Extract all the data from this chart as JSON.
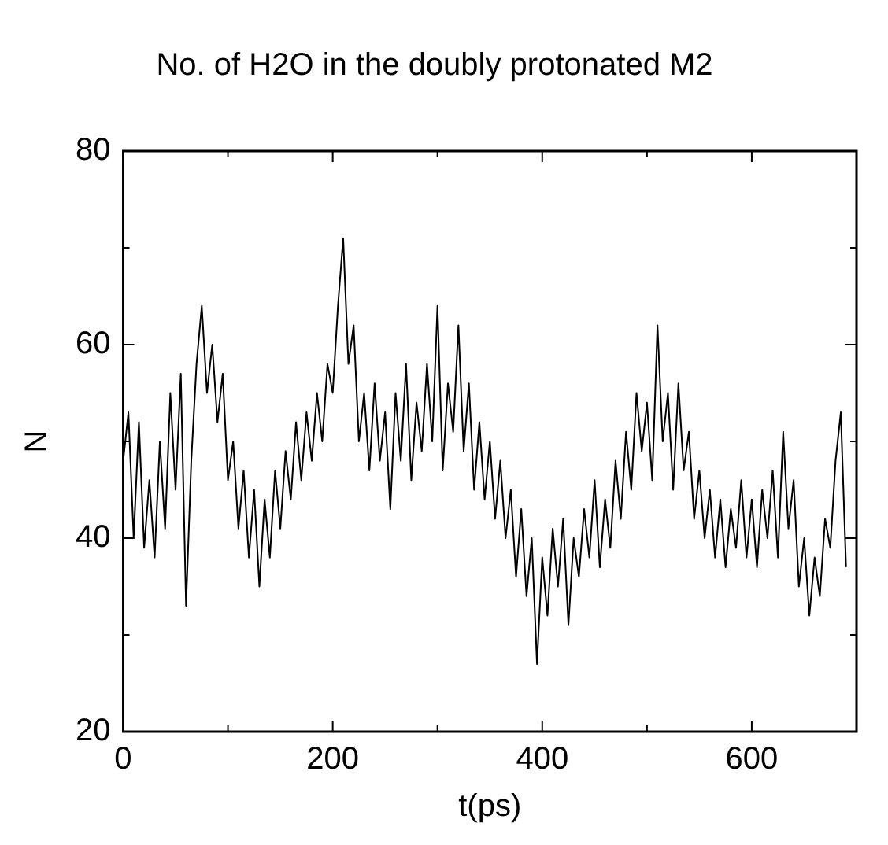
{
  "chart_data": {
    "type": "line",
    "title": "No. of H2O in the doubly protonated M2",
    "xlabel": "t(ps)",
    "ylabel": "N",
    "xlim": [
      0,
      700
    ],
    "ylim": [
      20,
      80
    ],
    "xticks": [
      0,
      {
        "value": 100,
        "label": null
      },
      200,
      {
        "value": 300,
        "label": null
      },
      400,
      {
        "value": 500,
        "label": null
      },
      600,
      {
        "value": 700,
        "label": null
      }
    ],
    "yticks": [
      20,
      {
        "value": 30,
        "label": null
      },
      40,
      {
        "value": 50,
        "label": null
      },
      60,
      {
        "value": 70,
        "label": null
      },
      80
    ],
    "grid": false,
    "legend": false,
    "marker": "none",
    "line_style": "solid",
    "series": [
      {
        "color": "#000000",
        "x": [
          0,
          5,
          10,
          15,
          20,
          25,
          30,
          35,
          40,
          45,
          50,
          55,
          60,
          65,
          70,
          75,
          80,
          85,
          90,
          95,
          100,
          105,
          110,
          115,
          120,
          125,
          130,
          135,
          140,
          145,
          150,
          155,
          160,
          165,
          170,
          175,
          180,
          185,
          190,
          195,
          200,
          205,
          210,
          215,
          220,
          225,
          230,
          235,
          240,
          245,
          250,
          255,
          260,
          265,
          270,
          275,
          280,
          285,
          290,
          295,
          300,
          305,
          310,
          315,
          320,
          325,
          330,
          335,
          340,
          345,
          350,
          355,
          360,
          365,
          370,
          375,
          380,
          385,
          390,
          395,
          400,
          405,
          410,
          415,
          420,
          425,
          430,
          435,
          440,
          445,
          450,
          455,
          460,
          465,
          470,
          475,
          480,
          485,
          490,
          495,
          500,
          505,
          510,
          515,
          520,
          525,
          530,
          535,
          540,
          545,
          550,
          555,
          560,
          565,
          570,
          575,
          580,
          585,
          590,
          595,
          600,
          605,
          610,
          615,
          620,
          625,
          630,
          635,
          640,
          645,
          650,
          655,
          660,
          665,
          670,
          675,
          680,
          685,
          690
        ],
        "values": [
          48,
          53,
          40,
          52,
          39,
          46,
          38,
          50,
          41,
          55,
          45,
          57,
          33,
          48,
          58,
          64,
          55,
          60,
          52,
          57,
          46,
          50,
          41,
          47,
          38,
          45,
          35,
          44,
          38,
          47,
          41,
          49,
          44,
          52,
          46,
          53,
          48,
          55,
          50,
          58,
          55,
          64,
          71,
          58,
          62,
          50,
          55,
          47,
          56,
          48,
          53,
          43,
          55,
          48,
          58,
          46,
          54,
          49,
          58,
          50,
          64,
          47,
          56,
          51,
          62,
          49,
          56,
          45,
          52,
          44,
          50,
          42,
          48,
          40,
          45,
          36,
          43,
          34,
          40,
          27,
          38,
          32,
          41,
          35,
          42,
          31,
          40,
          36,
          43,
          38,
          46,
          37,
          44,
          39,
          48,
          42,
          51,
          45,
          55,
          49,
          54,
          46,
          62,
          50,
          55,
          45,
          56,
          47,
          51,
          42,
          47,
          40,
          45,
          38,
          44,
          37,
          43,
          39,
          46,
          38,
          44,
          37,
          45,
          40,
          47,
          38,
          51,
          41,
          46,
          35,
          40,
          32,
          38,
          34,
          42,
          39,
          48,
          53,
          37
        ]
      }
    ]
  }
}
